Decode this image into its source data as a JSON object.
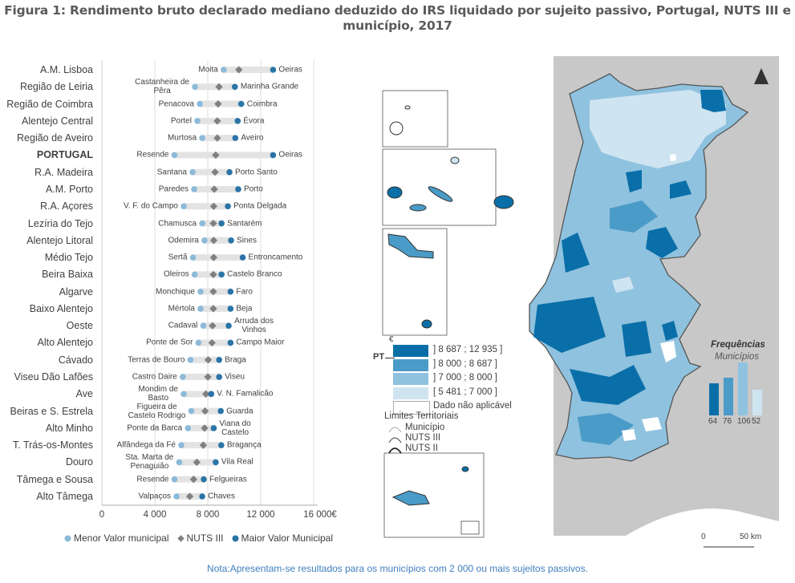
{
  "title": "Figura 1: Rendimento bruto declarado mediano deduzido do IRS liquidado por sujeito passivo, Portugal, NUTS III e município, 2017",
  "note": "Nota:Apresentam-se resultados para os  municípios com 2 000 ou mais sujeitos passivos.",
  "colors": {
    "min": "#8cbad9",
    "nuts": "#808080",
    "max": "#2a74a6",
    "band": "#e3e3e3",
    "class1": "#0a6fa8",
    "class2": "#4a9bc7",
    "class3": "#8fc2df",
    "class4": "#cfe4f1",
    "land": "#c8c8c8"
  },
  "chart_data": {
    "type": "dot-range",
    "xlim": [
      0,
      16000
    ],
    "x_ticks": [
      "0",
      "4 000",
      "8 000",
      "12 000",
      "16 000€"
    ],
    "grid": true,
    "legend": {
      "placement": "bottom",
      "min": "Menor Valor municipal",
      "nuts": "NUTS III",
      "max": "Maior Valor Municipal"
    },
    "rows": [
      {
        "region": "A.M. Lisboa",
        "min": 9200,
        "min_mun": "Moita",
        "nuts": 10350,
        "max": 12935,
        "max_mun": "Oeiras"
      },
      {
        "region": "Região de Leiria",
        "min": 7030,
        "min_mun": "Castanheira de\nPêra",
        "nuts": 8850,
        "max": 10050,
        "max_mun": "Marinha Grande"
      },
      {
        "region": "Região de Coimbra",
        "min": 7400,
        "min_mun": "Penacova",
        "nuts": 8780,
        "max": 10530,
        "max_mun": "Coimbra"
      },
      {
        "region": "Alentejo Central",
        "min": 7210,
        "min_mun": "Portel",
        "nuts": 8720,
        "max": 10260,
        "max_mun": "Évora"
      },
      {
        "region": "Região de Aveiro",
        "min": 7580,
        "min_mun": "Murtosa",
        "nuts": 8720,
        "max": 10080,
        "max_mun": "Aveiro"
      },
      {
        "region": "PORTUGAL",
        "bold": true,
        "min": 5481,
        "min_mun": "Resende",
        "nuts": 8600,
        "max": 12935,
        "max_mun": "Oeiras"
      },
      {
        "region": "R.A. Madeira",
        "min": 6850,
        "min_mun": "Santana",
        "nuts": 8550,
        "max": 9640,
        "max_mun": "Porto Santo"
      },
      {
        "region": "A.M. Porto",
        "min": 6970,
        "min_mun": "Paredes",
        "nuts": 8490,
        "max": 10300,
        "max_mun": "Porto"
      },
      {
        "region": "R.A. Açores",
        "min": 6180,
        "min_mun": "V. F. do Campo",
        "nuts": 8450,
        "max": 9520,
        "max_mun": "Ponta Delgada"
      },
      {
        "region": "Lezíria do Tejo",
        "min": 7580,
        "min_mun": "Chamusca",
        "nuts": 8420,
        "max": 9040,
        "max_mun": "Santarém"
      },
      {
        "region": "Alentejo Litoral",
        "min": 7750,
        "min_mun": "Odemira",
        "nuts": 8450,
        "max": 9760,
        "max_mun": "Sines"
      },
      {
        "region": "Médio Tejo",
        "min": 6880,
        "min_mun": "Sertã",
        "nuts": 8450,
        "max": 10640,
        "max_mun": "Entroncamento"
      },
      {
        "region": "Beira Baixa",
        "min": 7010,
        "min_mun": "Oleiros",
        "nuts": 8420,
        "max": 9040,
        "max_mun": "Castelo Branco"
      },
      {
        "region": "Algarve",
        "min": 7450,
        "min_mun": "Monchique",
        "nuts": 8420,
        "max": 9720,
        "max_mun": "Faro"
      },
      {
        "region": "Baixo Alentejo",
        "min": 7450,
        "min_mun": "Mértola",
        "nuts": 8420,
        "max": 9720,
        "max_mun": "Beja"
      },
      {
        "region": "Oeste",
        "min": 7660,
        "min_mun": "Cadaval",
        "nuts": 8360,
        "max": 9580,
        "max_mun": "Arruda dos\nVinhos"
      },
      {
        "region": "Alto Alentejo",
        "min": 7300,
        "min_mun": "Ponte de Sor",
        "nuts": 8320,
        "max": 9720,
        "max_mun": "Campo Maior"
      },
      {
        "region": "Cávado",
        "min": 6690,
        "min_mun": "Terras de Bouro",
        "nuts": 8030,
        "max": 8860,
        "max_mun": "Braga"
      },
      {
        "region": "Viseu Dão Lafões",
        "min": 6110,
        "min_mun": "Castro Daire",
        "nuts": 8010,
        "max": 8860,
        "max_mun": "Viseu"
      },
      {
        "region": "Ave",
        "min": 6180,
        "min_mun": "Mondim de\nBasto",
        "nuts": 7860,
        "max": 8260,
        "max_mun": "V. N. Famalicão"
      },
      {
        "region": "Beiras e S. Estrela",
        "min": 6750,
        "min_mun": "Figueira de\nCastelo Rodrigo",
        "nuts": 7800,
        "max": 8980,
        "max_mun": "Guarda"
      },
      {
        "region": "Alto Minho",
        "min": 6500,
        "min_mun": "Ponte da Barca",
        "nuts": 7760,
        "max": 8450,
        "max_mun": "Viana do\nCastelo"
      },
      {
        "region": "T. Trás-os-Montes",
        "min": 6000,
        "min_mun": "Alfândega da Fé",
        "nuts": 7660,
        "max": 9020,
        "max_mun": "Bragança"
      },
      {
        "region": "Douro",
        "min": 5840,
        "min_mun": "Sta. Marta de\nPenaguião",
        "nuts": 7170,
        "max": 8600,
        "max_mun": "Vila Real"
      },
      {
        "region": "Tâmega e Sousa",
        "min": 5481,
        "min_mun": "Resende",
        "nuts": 6930,
        "max": 7700,
        "max_mun": "Felgueiras"
      },
      {
        "region": "Alto Tâmega",
        "min": 5640,
        "min_mun": "Valpaços",
        "nuts": 6640,
        "max": 7580,
        "max_mun": "Chaves"
      }
    ]
  },
  "map": {
    "currency": "€",
    "pt_marker": "PT",
    "classes": [
      {
        "label": "] 8 687 ; 12 935 ]",
        "color": "#0a6fa8"
      },
      {
        "label": "] 8 000 ; 8 687 ]",
        "color": "#4a9bc7"
      },
      {
        "label": "] 7 000 ; 8 000 ]",
        "color": "#8fc2df"
      },
      {
        "label": "[ 5 481 ; 7 000 ]",
        "color": "#cfe4f1"
      },
      {
        "label": "Dado não aplicável",
        "color": "#ffffff"
      }
    ],
    "limits_title": "Limites Territoriais",
    "limits": [
      "Município",
      "NUTS III",
      "NUTS II"
    ],
    "freq_title": "Frequências",
    "freq_subtitle": "Municípios",
    "frequencies": [
      64,
      76,
      106,
      52
    ],
    "scale_start": "0",
    "scale_end": "50 km",
    "north_arrow": "north-arrow-icon"
  }
}
